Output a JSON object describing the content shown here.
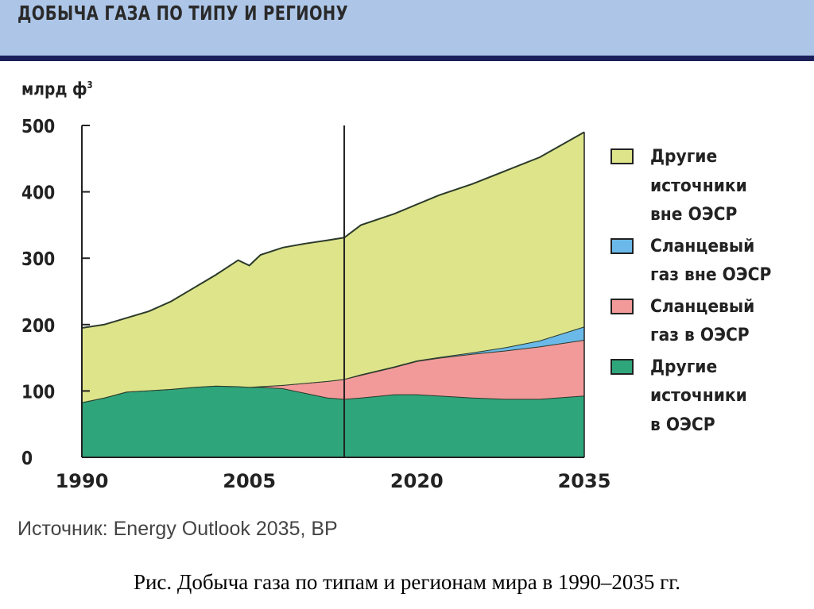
{
  "header": {
    "title": "ДОБЫЧА ГАЗА ПО ТИПУ И РЕГИОНУ"
  },
  "source": "Источник: Energy Outlook 2035, BP",
  "caption": "Рис. Добыча газа по типам и регионам мира в 1990–2035 гг.",
  "chart_data": {
    "type": "area",
    "stacked": true,
    "title": "ДОБЫЧА ГАЗА ПО ТИПУ И РЕГИОНУ",
    "ylabel": "млрд ф",
    "ylabel_sup": "3",
    "xlabel": "",
    "ylim": [
      0,
      500
    ],
    "xlim": [
      1990,
      2035
    ],
    "yticks": [
      "0",
      "100",
      "200",
      "300",
      "400",
      "500"
    ],
    "xticks": [
      "1990",
      "2005",
      "2020",
      "2035"
    ],
    "projection_start": 2013.5,
    "x": [
      1990,
      1992,
      1994,
      1996,
      1998,
      2000,
      2002,
      2004,
      2005,
      2006,
      2008,
      2010,
      2012,
      2013.5,
      2015,
      2018,
      2020,
      2022,
      2025,
      2028,
      2031,
      2035
    ],
    "series": [
      {
        "name": "Другие источники в ОЭСР",
        "legend": "Другие\nисточники\nв ОЭСР",
        "color": "#2fa57b",
        "values": [
          83,
          90,
          99,
          101,
          103,
          106,
          108,
          107,
          106,
          106,
          104,
          97,
          90,
          88,
          90,
          95,
          95,
          93,
          90,
          88,
          88,
          93
        ]
      },
      {
        "name": "Сланцевый газ в ОЭСР",
        "legend": "Сланцевый\nгаз в ОЭСР",
        "color": "#f29a9a",
        "values": [
          0,
          0,
          0,
          0,
          0,
          0,
          0,
          0,
          0,
          1,
          5,
          15,
          25,
          30,
          34,
          41,
          50,
          57,
          66,
          73,
          79,
          84
        ]
      },
      {
        "name": "Сланцевый газ вне ОЭСР",
        "legend": "Сланцевый\nгаз вне ОЭСР",
        "color": "#6bb9e8",
        "values": [
          0,
          0,
          0,
          0,
          0,
          0,
          0,
          0,
          0,
          0,
          0,
          0,
          0,
          0,
          1,
          1,
          1,
          1,
          2,
          5,
          9,
          20
        ]
      },
      {
        "name": "Другие источники вне ОЭСР",
        "legend": "Другие\nисточники\nвне ОЭСР",
        "color": "#dde48a",
        "values": [
          112,
          110,
          111,
          119,
          132,
          149,
          167,
          190,
          183,
          198,
          207,
          210,
          212,
          213,
          225,
          230,
          235,
          244,
          254,
          266,
          276,
          293
        ]
      }
    ],
    "legend_placement": "right"
  }
}
